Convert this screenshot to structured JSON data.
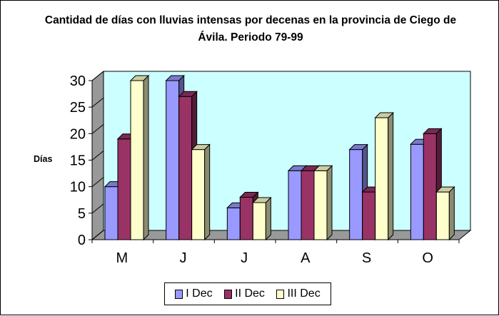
{
  "chart_data": {
    "type": "bar",
    "title": "Cantidad de días con lluvias intensas por decenas en la provincia de Ciego de Ávila. Periodo 79-99",
    "xlabel": "",
    "ylabel": "Días",
    "categories": [
      "M",
      "J",
      "J",
      "A",
      "S",
      "O"
    ],
    "ylim": [
      0,
      30
    ],
    "yticks": [
      0,
      5,
      10,
      15,
      20,
      25,
      30
    ],
    "grid": false,
    "legend_position": "bottom",
    "series": [
      {
        "name": "I Dec",
        "values": [
          10,
          30,
          6,
          13,
          17,
          18
        ],
        "color": "#9999FF"
      },
      {
        "name": "II Dec",
        "values": [
          19,
          27,
          8,
          13,
          9,
          20
        ],
        "color": "#993366"
      },
      {
        "name": "III Dec",
        "values": [
          30,
          17,
          7,
          13,
          23,
          9
        ],
        "color": "#FFFFCC"
      }
    ],
    "plot_background": "#CCFFFF",
    "floor_color": "#999999"
  }
}
